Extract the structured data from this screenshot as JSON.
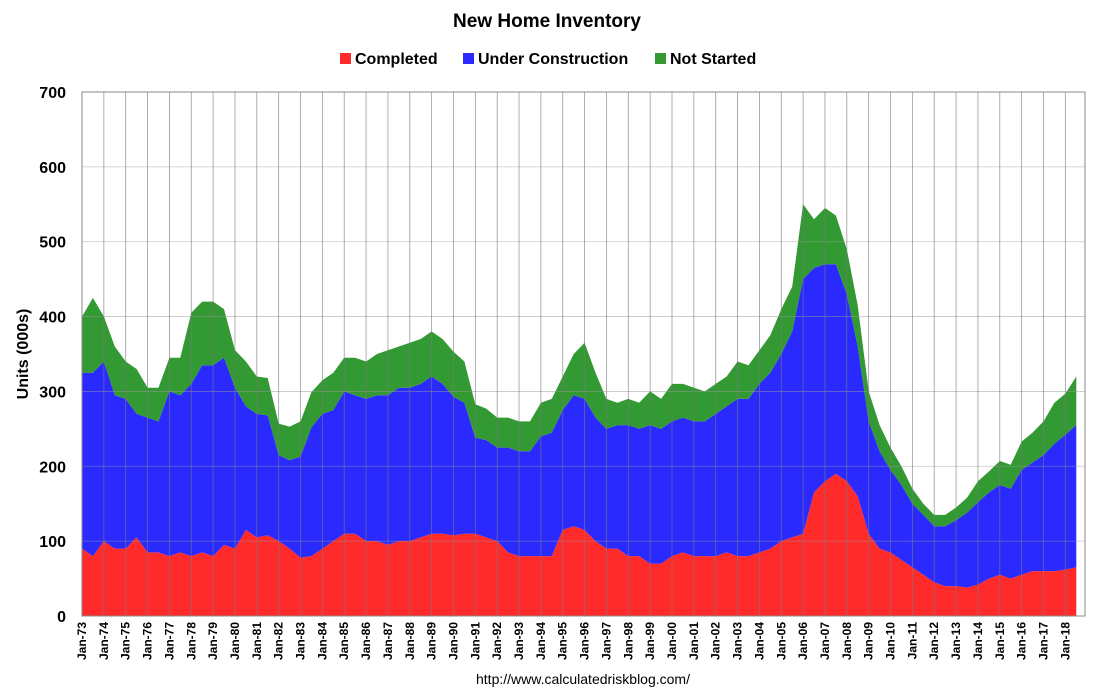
{
  "chart_data": {
    "type": "area",
    "stacked": true,
    "title": "New Home Inventory",
    "xlabel": "",
    "ylabel": "Units (000s)",
    "ylim": [
      0,
      700
    ],
    "yticks": [
      0,
      100,
      200,
      300,
      400,
      500,
      600,
      700
    ],
    "grid": "vertical lines at each year",
    "legend_position": "top",
    "source_text": "http://www.calculatedriskblog.com/",
    "categories": [
      "Jan-73",
      "Jan-74",
      "Jan-75",
      "Jan-76",
      "Jan-77",
      "Jan-78",
      "Jan-79",
      "Jan-80",
      "Jan-81",
      "Jan-82",
      "Jan-83",
      "Jan-84",
      "Jan-85",
      "Jan-86",
      "Jan-87",
      "Jan-88",
      "Jan-89",
      "Jan-90",
      "Jan-91",
      "Jan-92",
      "Jan-93",
      "Jan-94",
      "Jan-95",
      "Jan-96",
      "Jan-97",
      "Jan-98",
      "Jan-99",
      "Jan-00",
      "Jan-01",
      "Jan-02",
      "Jan-03",
      "Jan-04",
      "Jan-05",
      "Jan-06",
      "Jan-07",
      "Jan-08",
      "Jan-09",
      "Jan-10",
      "Jan-11",
      "Jan-12",
      "Jan-13",
      "Jan-14",
      "Jan-15",
      "Jan-16",
      "Jan-17",
      "Jan-18"
    ],
    "x": [
      1973.0,
      1973.5,
      1974.0,
      1974.5,
      1975.0,
      1975.5,
      1976.0,
      1976.5,
      1977.0,
      1977.5,
      1978.0,
      1978.5,
      1979.0,
      1979.5,
      1980.0,
      1980.5,
      1981.0,
      1981.5,
      1982.0,
      1982.5,
      1983.0,
      1983.5,
      1984.0,
      1984.5,
      1985.0,
      1985.5,
      1986.0,
      1986.5,
      1987.0,
      1987.5,
      1988.0,
      1988.5,
      1989.0,
      1989.5,
      1990.0,
      1990.5,
      1991.0,
      1991.5,
      1992.0,
      1992.5,
      1993.0,
      1993.5,
      1994.0,
      1994.5,
      1995.0,
      1995.5,
      1996.0,
      1996.5,
      1997.0,
      1997.5,
      1998.0,
      1998.5,
      1999.0,
      1999.5,
      2000.0,
      2000.5,
      2001.0,
      2001.5,
      2002.0,
      2002.5,
      2003.0,
      2003.5,
      2004.0,
      2004.5,
      2005.0,
      2005.5,
      2006.0,
      2006.5,
      2007.0,
      2007.5,
      2008.0,
      2008.5,
      2009.0,
      2009.5,
      2010.0,
      2010.5,
      2011.0,
      2011.5,
      2012.0,
      2012.5,
      2013.0,
      2013.5,
      2014.0,
      2014.5,
      2015.0,
      2015.5,
      2016.0,
      2016.5,
      2017.0,
      2017.5,
      2018.0,
      2018.5
    ],
    "series": [
      {
        "name": "Completed",
        "color": "#ff2a2a",
        "values": [
          90,
          80,
          100,
          90,
          90,
          105,
          85,
          85,
          80,
          85,
          80,
          85,
          80,
          95,
          90,
          115,
          105,
          108,
          100,
          90,
          78,
          80,
          90,
          100,
          110,
          110,
          100,
          100,
          95,
          100,
          100,
          105,
          110,
          110,
          108,
          110,
          110,
          105,
          100,
          85,
          80,
          80,
          80,
          80,
          115,
          120,
          115,
          100,
          90,
          90,
          80,
          80,
          70,
          70,
          80,
          85,
          80,
          80,
          80,
          85,
          80,
          80,
          85,
          90,
          100,
          105,
          110,
          165,
          180,
          190,
          180,
          160,
          110,
          90,
          85,
          75,
          65,
          55,
          45,
          40,
          40,
          38,
          42,
          50,
          55,
          50,
          55,
          60,
          60,
          60,
          62,
          65
        ]
      },
      {
        "name": "Under Construction",
        "color": "#2a2aff",
        "values": [
          235,
          245,
          240,
          205,
          200,
          165,
          180,
          175,
          220,
          210,
          230,
          250,
          255,
          250,
          215,
          165,
          165,
          160,
          115,
          118,
          135,
          172,
          180,
          175,
          190,
          185,
          190,
          195,
          200,
          205,
          205,
          205,
          210,
          200,
          185,
          175,
          128,
          130,
          125,
          140,
          140,
          140,
          160,
          165,
          160,
          175,
          175,
          165,
          160,
          165,
          175,
          170,
          185,
          180,
          180,
          180,
          180,
          180,
          190,
          195,
          210,
          210,
          225,
          235,
          250,
          275,
          340,
          300,
          290,
          280,
          250,
          200,
          150,
          130,
          110,
          100,
          85,
          80,
          75,
          80,
          88,
          100,
          110,
          115,
          120,
          120,
          140,
          145,
          155,
          170,
          180,
          190
        ]
      },
      {
        "name": "Not Started",
        "color": "#339933",
        "values": [
          75,
          100,
          60,
          65,
          50,
          60,
          40,
          45,
          45,
          50,
          95,
          85,
          85,
          65,
          50,
          60,
          50,
          50,
          42,
          45,
          47,
          47,
          45,
          50,
          45,
          50,
          50,
          55,
          60,
          55,
          60,
          60,
          60,
          60,
          60,
          55,
          45,
          42,
          40,
          40,
          40,
          40,
          45,
          45,
          45,
          55,
          75,
          60,
          40,
          30,
          35,
          35,
          45,
          40,
          50,
          45,
          45,
          40,
          40,
          40,
          50,
          45,
          45,
          50,
          60,
          60,
          100,
          65,
          75,
          65,
          60,
          55,
          40,
          35,
          30,
          25,
          20,
          15,
          15,
          15,
          17,
          20,
          28,
          28,
          32,
          32,
          38,
          40,
          45,
          55,
          55,
          65
        ]
      }
    ]
  }
}
